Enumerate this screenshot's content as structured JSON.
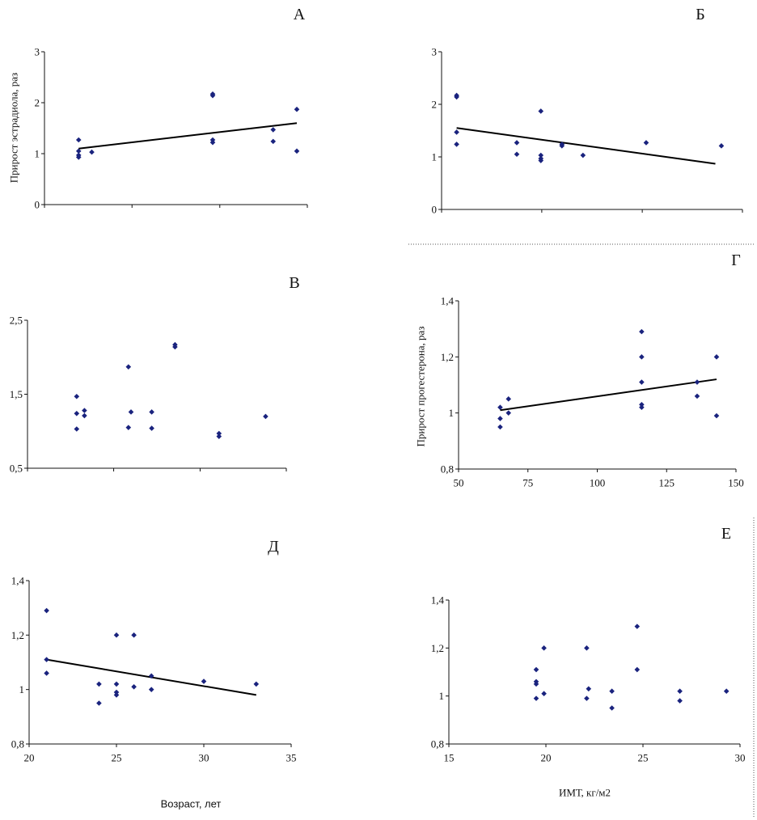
{
  "chart_data": [
    {
      "id": "A",
      "type": "scatter",
      "title": "А",
      "ylabel": "Прирост эстрадиола, раз",
      "xlabel": "",
      "ylim": [
        0,
        3
      ],
      "yticks": [
        0,
        1,
        2,
        3
      ],
      "ytick_labels": [
        "0",
        "1",
        "2",
        "3"
      ],
      "xlim": [
        0,
        100
      ],
      "xticks": [
        0,
        33.3,
        66.7,
        100
      ],
      "xtick_labels": [],
      "points": [
        {
          "x": 13,
          "y": 1.27
        },
        {
          "x": 13,
          "y": 1.05
        },
        {
          "x": 13,
          "y": 0.97
        },
        {
          "x": 13,
          "y": 0.93
        },
        {
          "x": 18,
          "y": 1.03
        },
        {
          "x": 64,
          "y": 2.17
        },
        {
          "x": 64,
          "y": 2.14
        },
        {
          "x": 64,
          "y": 1.27
        },
        {
          "x": 64,
          "y": 1.22
        },
        {
          "x": 87,
          "y": 1.47
        },
        {
          "x": 87,
          "y": 1.24
        },
        {
          "x": 96,
          "y": 1.87
        },
        {
          "x": 96,
          "y": 1.05
        }
      ],
      "trendline": {
        "x": [
          13,
          96
        ],
        "y": [
          1.1,
          1.6
        ]
      }
    },
    {
      "id": "B",
      "type": "scatter",
      "title": "Б",
      "ylabel": "",
      "xlabel": "",
      "ylim": [
        0,
        3
      ],
      "yticks": [
        0,
        1,
        2,
        3
      ],
      "ytick_labels": [
        "0",
        "1",
        "2",
        "3"
      ],
      "xlim": [
        0,
        100
      ],
      "xticks": [
        0,
        33.3,
        66.7,
        100
      ],
      "xtick_labels": [],
      "points": [
        {
          "x": 5,
          "y": 2.17
        },
        {
          "x": 5,
          "y": 2.14
        },
        {
          "x": 5,
          "y": 1.47
        },
        {
          "x": 5,
          "y": 1.24
        },
        {
          "x": 25,
          "y": 1.27
        },
        {
          "x": 25,
          "y": 1.05
        },
        {
          "x": 33,
          "y": 1.87
        },
        {
          "x": 33,
          "y": 1.03
        },
        {
          "x": 33,
          "y": 0.97
        },
        {
          "x": 33,
          "y": 0.93
        },
        {
          "x": 40,
          "y": 1.24
        },
        {
          "x": 40,
          "y": 1.21
        },
        {
          "x": 47,
          "y": 1.03
        },
        {
          "x": 68,
          "y": 1.27
        },
        {
          "x": 93,
          "y": 1.21
        }
      ],
      "trendline": {
        "x": [
          5,
          91
        ],
        "y": [
          1.55,
          0.87
        ]
      }
    },
    {
      "id": "V",
      "type": "scatter",
      "title": "В",
      "ylabel": "",
      "xlabel": "",
      "ylim": [
        0.5,
        2.5
      ],
      "yticks": [
        0.5,
        1.5,
        2.5
      ],
      "ytick_labels": [
        "0,5",
        "1,5",
        "2,5"
      ],
      "xlim": [
        0,
        100
      ],
      "xticks": [
        0,
        33.3,
        66.7,
        100
      ],
      "xtick_labels": [],
      "points": [
        {
          "x": 19,
          "y": 1.47
        },
        {
          "x": 19,
          "y": 1.24
        },
        {
          "x": 19,
          "y": 1.03
        },
        {
          "x": 22,
          "y": 1.28
        },
        {
          "x": 22,
          "y": 1.21
        },
        {
          "x": 39,
          "y": 1.87
        },
        {
          "x": 39,
          "y": 1.05
        },
        {
          "x": 40,
          "y": 1.26
        },
        {
          "x": 48,
          "y": 1.26
        },
        {
          "x": 48,
          "y": 1.04
        },
        {
          "x": 57,
          "y": 2.17
        },
        {
          "x": 57,
          "y": 2.14
        },
        {
          "x": 74,
          "y": 0.97
        },
        {
          "x": 74,
          "y": 0.93
        },
        {
          "x": 92,
          "y": 1.2
        }
      ]
    },
    {
      "id": "G",
      "type": "scatter",
      "title": "Г",
      "ylabel": "Прирост прогестерона, раз",
      "xlabel": "",
      "ylim": [
        0.8,
        1.4
      ],
      "yticks": [
        0.8,
        1,
        1.2,
        1.4
      ],
      "ytick_labels": [
        "0,8",
        "1",
        "1,2",
        "1,4"
      ],
      "xlim": [
        50,
        150
      ],
      "xticks": [
        50,
        75,
        100,
        125,
        150
      ],
      "xtick_labels": [
        "50",
        "75",
        "100",
        "125",
        "150"
      ],
      "points": [
        {
          "x": 65,
          "y": 1.02
        },
        {
          "x": 65,
          "y": 0.98
        },
        {
          "x": 65,
          "y": 0.95
        },
        {
          "x": 68,
          "y": 1.05
        },
        {
          "x": 68,
          "y": 1.0
        },
        {
          "x": 116,
          "y": 1.29
        },
        {
          "x": 116,
          "y": 1.2
        },
        {
          "x": 116,
          "y": 1.11
        },
        {
          "x": 116,
          "y": 1.03
        },
        {
          "x": 116,
          "y": 1.02
        },
        {
          "x": 136,
          "y": 1.11
        },
        {
          "x": 136,
          "y": 1.06
        },
        {
          "x": 143,
          "y": 1.2
        },
        {
          "x": 143,
          "y": 0.99
        }
      ],
      "trendline": {
        "x": [
          65,
          143
        ],
        "y": [
          1.01,
          1.12
        ]
      }
    },
    {
      "id": "D",
      "type": "scatter",
      "title": "Д",
      "ylabel": "",
      "xlabel": "Возраст, лет",
      "ylim": [
        0.8,
        1.4
      ],
      "yticks": [
        0.8,
        1,
        1.2,
        1.4
      ],
      "ytick_labels": [
        "0,8",
        "1",
        "1,2",
        "1,4"
      ],
      "xlim": [
        20,
        35
      ],
      "xticks": [
        20,
        25,
        30,
        35
      ],
      "xtick_labels": [
        "20",
        "25",
        "30",
        "35"
      ],
      "points": [
        {
          "x": 21,
          "y": 1.29
        },
        {
          "x": 21,
          "y": 1.11
        },
        {
          "x": 21,
          "y": 1.06
        },
        {
          "x": 24,
          "y": 1.02
        },
        {
          "x": 24,
          "y": 0.95
        },
        {
          "x": 25,
          "y": 1.2
        },
        {
          "x": 25,
          "y": 1.02
        },
        {
          "x": 25,
          "y": 0.99
        },
        {
          "x": 25,
          "y": 0.98
        },
        {
          "x": 26,
          "y": 1.2
        },
        {
          "x": 26,
          "y": 1.01
        },
        {
          "x": 27,
          "y": 1.05
        },
        {
          "x": 27,
          "y": 1.0
        },
        {
          "x": 30,
          "y": 1.03
        },
        {
          "x": 33,
          "y": 1.02
        }
      ],
      "trendline": {
        "x": [
          21,
          33
        ],
        "y": [
          1.11,
          0.98
        ]
      }
    },
    {
      "id": "E",
      "type": "scatter",
      "title": "Е",
      "ylabel": "",
      "xlabel": "ИМТ, кг/м2",
      "ylim": [
        0.8,
        1.4
      ],
      "yticks": [
        0.8,
        1,
        1.2,
        1.4
      ],
      "ytick_labels": [
        "0,8",
        "1",
        "1,2",
        "1,4"
      ],
      "xlim": [
        15,
        30
      ],
      "xticks": [
        15,
        20,
        25,
        30
      ],
      "xtick_labels": [
        "15",
        "20",
        "25",
        "30"
      ],
      "points": [
        {
          "x": 19.5,
          "y": 1.11
        },
        {
          "x": 19.5,
          "y": 1.06
        },
        {
          "x": 19.5,
          "y": 1.05
        },
        {
          "x": 19.5,
          "y": 0.99
        },
        {
          "x": 19.9,
          "y": 1.2
        },
        {
          "x": 19.9,
          "y": 1.01
        },
        {
          "x": 22.1,
          "y": 1.2
        },
        {
          "x": 22.2,
          "y": 1.03
        },
        {
          "x": 22.1,
          "y": 0.99
        },
        {
          "x": 23.4,
          "y": 1.02
        },
        {
          "x": 23.4,
          "y": 0.95
        },
        {
          "x": 24.7,
          "y": 1.29
        },
        {
          "x": 24.7,
          "y": 1.11
        },
        {
          "x": 26.9,
          "y": 1.02
        },
        {
          "x": 26.9,
          "y": 0.98
        },
        {
          "x": 29.3,
          "y": 1.02
        }
      ]
    }
  ]
}
